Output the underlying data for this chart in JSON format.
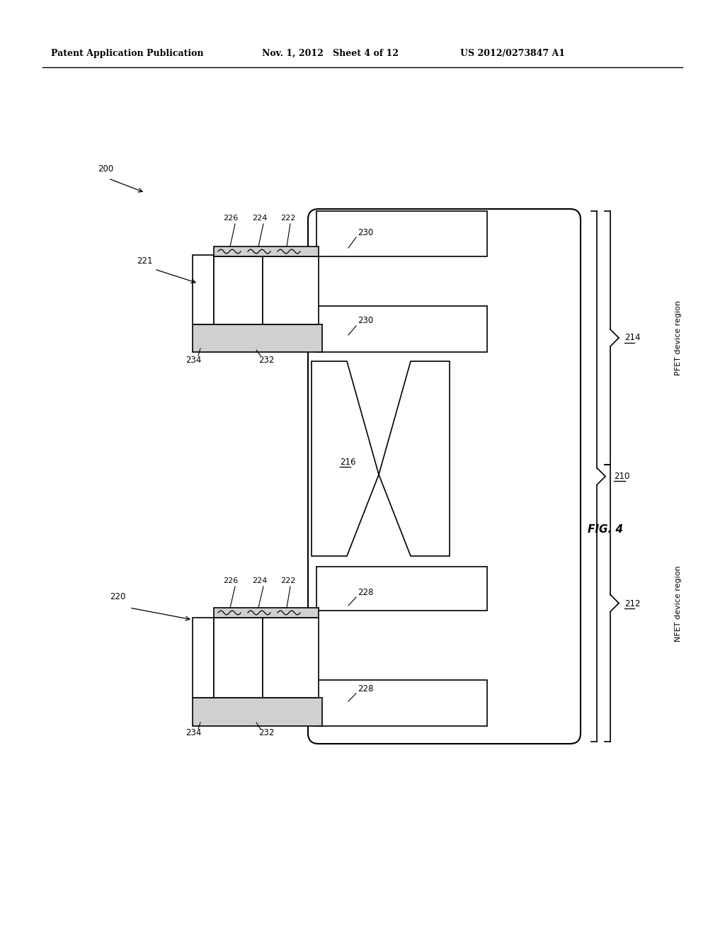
{
  "bg_color": "#ffffff",
  "header_left": "Patent Application Publication",
  "header_mid": "Nov. 1, 2012   Sheet 4 of 12",
  "header_right": "US 2012/0273847 A1",
  "fig_label": "FIG. 4",
  "title_fontsize": 9,
  "label_fontsize": 8.5,
  "ref_200": "200",
  "ref_221": "221",
  "ref_220": "220",
  "ref_210": "210",
  "ref_212": "212",
  "ref_214": "214",
  "ref_216": "216",
  "ref_222": "222",
  "ref_224": "224",
  "ref_226": "226",
  "ref_228": "228",
  "ref_230": "230",
  "ref_232": "232",
  "ref_234": "234",
  "pfet_label": "PFET device region",
  "nfet_label": "NFET device region"
}
